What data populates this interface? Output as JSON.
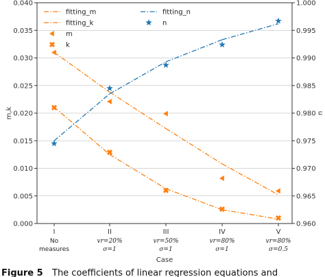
{
  "colors": {
    "orange": "#ff7f0e",
    "blue": "#1f77b4",
    "grid": "#b0b0b0",
    "axis": "#333333"
  },
  "chart_data": {
    "type": "line",
    "xlabel": "Case",
    "ylabel_left": "m,k",
    "ylabel_right": "n",
    "ylim_left": [
      0,
      0.04
    ],
    "ylim_right": [
      0.96,
      1.0
    ],
    "yticks_left": [
      "0.000",
      "0.005",
      "0.010",
      "0.015",
      "0.020",
      "0.025",
      "0.030",
      "0.035",
      "0.040"
    ],
    "yticks_right": [
      "0.960",
      "0.965",
      "0.970",
      "0.975",
      "0.980",
      "0.985",
      "0.990",
      "0.995",
      "1.000"
    ],
    "categories": [
      "I",
      "II",
      "III",
      "IV",
      "V"
    ],
    "category_sublabels": [
      {
        "line1": "No",
        "line2": "measures"
      },
      {
        "line1": "vr=20%",
        "line2": "σ=1"
      },
      {
        "line1": "vr=50%",
        "line2": "σ=1"
      },
      {
        "line1": "vr=80%",
        "line2": "σ=1"
      },
      {
        "line1": "vr=80%",
        "line2": "σ=0.5"
      }
    ],
    "grid": "horizontal",
    "series": [
      {
        "name": "fitting_m",
        "kind": "line",
        "axis": "left",
        "style": "dashdot",
        "color": "#ff7f0e",
        "values": [
          0.031,
          0.0238,
          0.0172,
          0.0108,
          0.0052
        ]
      },
      {
        "name": "fitting_k",
        "kind": "line",
        "axis": "left",
        "style": "dashdot",
        "color": "#ff7f0e",
        "values": [
          0.0211,
          0.0125,
          0.0063,
          0.0025,
          0.0008
        ]
      },
      {
        "name": "m",
        "kind": "marker",
        "marker": "triangle-left",
        "axis": "left",
        "color": "#ff7f0e",
        "values": [
          0.031,
          0.0221,
          0.0199,
          0.0082,
          0.0059
        ]
      },
      {
        "name": "k",
        "kind": "marker",
        "marker": "x-filled",
        "axis": "left",
        "color": "#ff7f0e",
        "values": [
          0.021,
          0.0129,
          0.006,
          0.0026,
          0.001
        ]
      },
      {
        "name": "fitting_n",
        "kind": "line",
        "axis": "right",
        "style": "dashdot",
        "color": "#1f77b4",
        "values": [
          0.975,
          0.9835,
          0.9893,
          0.9933,
          0.9962
        ]
      },
      {
        "name": "n",
        "kind": "marker",
        "marker": "star",
        "axis": "right",
        "color": "#1f77b4",
        "values": [
          0.9745,
          0.9845,
          0.9887,
          0.9924,
          0.9967
        ]
      }
    ],
    "legend_left": [
      "fitting_m",
      "fitting_k",
      "m",
      "k"
    ],
    "legend_right": [
      "fitting_n",
      "n"
    ],
    "legend_placement": "top-left and top-center"
  },
  "caption": {
    "label": "Figure 5",
    "text": "The coefficients of linear regression equations and"
  }
}
